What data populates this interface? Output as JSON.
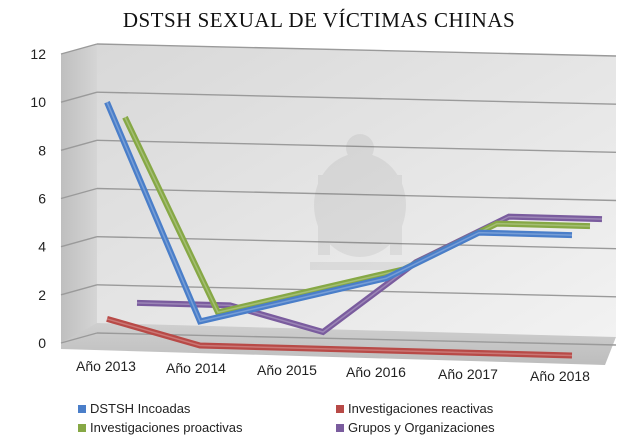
{
  "chart_data": {
    "type": "line",
    "title": "DSTSH SEXUAL DE VÍCTIMAS CHINAS",
    "categories": [
      "Año 2013",
      "Año 2014",
      "Año 2015",
      "Año 2016",
      "Año 2017",
      "Año 2018"
    ],
    "ylim": [
      0,
      12
    ],
    "yticks": [
      0,
      2,
      4,
      6,
      8,
      10,
      12
    ],
    "grid": true,
    "legend_position": "bottom",
    "three_d": true,
    "series": [
      {
        "name": "DSTSH Incoadas",
        "color": "#4a7ec9",
        "values": [
          10,
          1,
          2,
          3,
          5,
          5
        ]
      },
      {
        "name": "Investigaciones reactivas",
        "color": "#b84a47",
        "values": [
          1,
          0,
          0,
          0,
          0,
          0
        ]
      },
      {
        "name": "Investigaciones proactivas",
        "color": "#86a845",
        "values": [
          9,
          1,
          2,
          3,
          5,
          5
        ]
      },
      {
        "name": "Grupos y Organizaciones",
        "color": "#7a5c9e",
        "values": [
          1,
          1,
          0,
          3,
          5,
          5
        ]
      }
    ]
  }
}
